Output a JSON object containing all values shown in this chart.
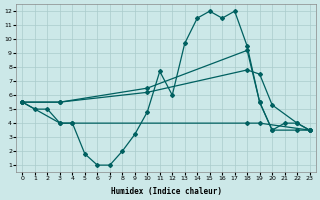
{
  "xlabel": "Humidex (Indice chaleur)",
  "bg_color": "#cce8e8",
  "grid_color": "#aacccc",
  "line_color": "#006060",
  "xlim": [
    -0.5,
    23.5
  ],
  "ylim": [
    0.5,
    12.5
  ],
  "xticks": [
    0,
    1,
    2,
    3,
    4,
    5,
    6,
    7,
    8,
    9,
    10,
    11,
    12,
    13,
    14,
    15,
    16,
    17,
    18,
    19,
    20,
    21,
    22,
    23
  ],
  "yticks": [
    1,
    2,
    3,
    4,
    5,
    6,
    7,
    8,
    9,
    10,
    11,
    12
  ],
  "line1_x": [
    0,
    1,
    2,
    3,
    4,
    5,
    6,
    7,
    8,
    9,
    10,
    11,
    12,
    13,
    14,
    15,
    16,
    17,
    18,
    19,
    20,
    21,
    22,
    23
  ],
  "line1_y": [
    5.5,
    5.0,
    5.0,
    4.0,
    4.0,
    1.8,
    1.0,
    1.0,
    2.0,
    3.2,
    4.8,
    7.7,
    6.0,
    9.7,
    11.5,
    12.0,
    11.5,
    12.0,
    9.5,
    5.5,
    3.5,
    4.0,
    4.0,
    3.5
  ],
  "line2_x": [
    0,
    3,
    10,
    18,
    19,
    20,
    22,
    23
  ],
  "line2_y": [
    5.5,
    5.5,
    6.5,
    9.2,
    5.5,
    3.5,
    3.5,
    3.5
  ],
  "line3_x": [
    0,
    3,
    10,
    18,
    19,
    20,
    22,
    23
  ],
  "line3_y": [
    5.5,
    5.5,
    6.2,
    7.8,
    7.5,
    5.3,
    4.0,
    3.5
  ],
  "line4_x": [
    0,
    3,
    4,
    18,
    19,
    23
  ],
  "line4_y": [
    5.5,
    4.0,
    4.0,
    4.0,
    4.0,
    3.5
  ],
  "marker": "D",
  "markersize": 2.0,
  "linewidth": 0.9
}
